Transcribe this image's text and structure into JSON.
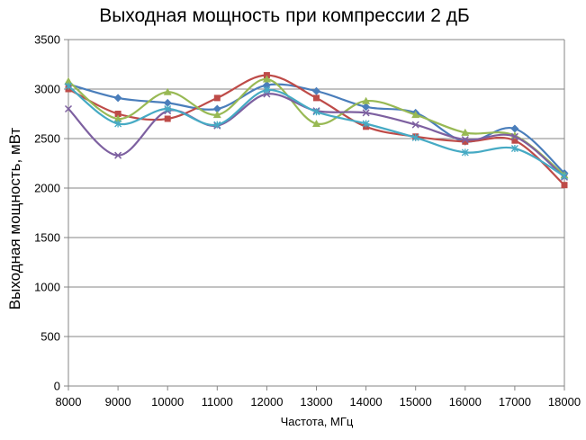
{
  "chart_data": {
    "type": "line",
    "title": "Выходная мощность при компрессии 2 дБ",
    "xlabel": "Частота, МГц",
    "ylabel": "Выходная мощность, мВт",
    "x": [
      8000,
      9000,
      10000,
      11000,
      12000,
      13000,
      14000,
      15000,
      16000,
      17000,
      18000
    ],
    "x_tick_labels": [
      "8000",
      "9000",
      "10000",
      "11000",
      "12000",
      "13000",
      "14000",
      "15000",
      "16000",
      "17000",
      "18000"
    ],
    "y_tick_labels": [
      "0",
      "500",
      "1000",
      "1500",
      "2000",
      "2500",
      "3000",
      "3500"
    ],
    "ylim": [
      0,
      3500
    ],
    "xlim": [
      8000,
      18000
    ],
    "grid": true,
    "smooth": true,
    "series": [
      {
        "color": "#4a7ebb",
        "marker": "diamond",
        "values": [
          3050,
          2910,
          2860,
          2800,
          3040,
          2980,
          2820,
          2760,
          2470,
          2600,
          2150
        ]
      },
      {
        "color": "#be4b48",
        "marker": "square",
        "values": [
          3000,
          2750,
          2700,
          2910,
          3140,
          2910,
          2620,
          2520,
          2470,
          2480,
          2030
        ]
      },
      {
        "color": "#98b954",
        "marker": "triangle",
        "values": [
          3080,
          2700,
          2970,
          2740,
          3100,
          2650,
          2880,
          2740,
          2560,
          2530,
          2130
        ]
      },
      {
        "color": "#7d60a0",
        "marker": "x",
        "values": [
          2800,
          2330,
          2780,
          2630,
          2950,
          2780,
          2760,
          2640,
          2490,
          2520,
          2110
        ]
      },
      {
        "color": "#46aac4",
        "marker": "star",
        "values": [
          3030,
          2650,
          2800,
          2640,
          2990,
          2770,
          2650,
          2510,
          2360,
          2400,
          2120
        ]
      }
    ]
  }
}
